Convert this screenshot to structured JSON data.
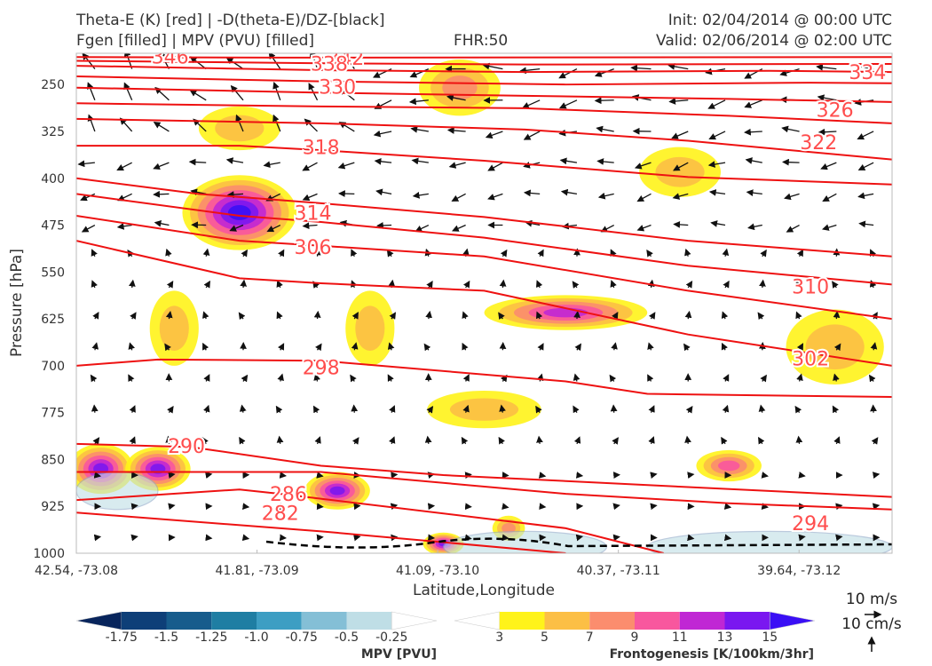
{
  "header": {
    "title_line1": "Theta-E (K) [red] | -D(theta-E)/DZ-[black]",
    "title_line2": "Fgen [filled] | MPV (PVU) [filled]",
    "fhr": "FHR:50",
    "init": "Init: 02/04/2014 @ 00:00 UTC",
    "valid": "Valid: 02/06/2014 @ 02:00 UTC"
  },
  "legend_vectors": {
    "horizontal": "10 m/s",
    "vertical": "10 cm/s"
  },
  "colorbars": {
    "mpv": {
      "label": "MPV [PVU]",
      "ticks": [
        "-1.75",
        "-1.5",
        "-1.25",
        "-1.0",
        "-0.75",
        "-0.5",
        "-0.25"
      ],
      "colors": [
        "#08255c",
        "#0e3f78",
        "#175c8c",
        "#1f7ea3",
        "#3d9ec3",
        "#84bfd6",
        "#bfdee6",
        "#ffffff"
      ]
    },
    "fgen": {
      "label": "Frontogenesis [K/100km/3hr]",
      "ticks": [
        "3",
        "5",
        "7",
        "9",
        "11",
        "13",
        "15"
      ],
      "colors": [
        "#ffffff",
        "#fff31a",
        "#fcbf45",
        "#fb8d6e",
        "#f8579e",
        "#c027d4",
        "#7a17f0",
        "#3a0ff5"
      ]
    }
  },
  "chart_data": {
    "type": "heatmap",
    "xlabel": "Latitude,Longitude",
    "ylabel": "Pressure [hPa]",
    "x_ticks": [
      "42.54, -73.08",
      "41.81, -73.09",
      "41.09, -73.10",
      "40.37, -73.11",
      "39.64, -73.12"
    ],
    "y_ticks": [
      250,
      325,
      400,
      475,
      550,
      625,
      700,
      775,
      850,
      925,
      1000
    ],
    "ylim": [
      1000,
      200
    ],
    "y_inverted": true,
    "theta_e_contours": [
      {
        "level": 282,
        "points": [
          [
            0,
            935
          ],
          [
            0.3,
            965
          ],
          [
            0.6,
            1000
          ]
        ]
      },
      {
        "level": 286,
        "points": [
          [
            0,
            915
          ],
          [
            0.2,
            898
          ],
          [
            0.25,
            905
          ],
          [
            0.6,
            960
          ],
          [
            0.72,
            1000
          ]
        ]
      },
      {
        "level": 290,
        "points": [
          [
            0,
            825
          ],
          [
            0.14,
            830
          ],
          [
            0.3,
            860
          ],
          [
            0.45,
            875
          ],
          [
            1,
            910
          ]
        ]
      },
      {
        "level": 294,
        "points": [
          [
            0,
            870
          ],
          [
            0.3,
            870
          ],
          [
            0.6,
            905
          ],
          [
            0.8,
            920
          ],
          [
            1,
            930
          ]
        ]
      },
      {
        "level": 298,
        "points": [
          [
            0,
            700
          ],
          [
            0.1,
            690
          ],
          [
            0.3,
            692
          ],
          [
            0.6,
            725
          ],
          [
            0.7,
            745
          ],
          [
            1,
            750
          ]
        ]
      },
      {
        "level": 302,
        "points": [
          [
            0,
            500
          ],
          [
            0.2,
            560
          ],
          [
            0.3,
            568
          ],
          [
            0.5,
            580
          ],
          [
            0.75,
            650
          ],
          [
            1,
            700
          ]
        ]
      },
      {
        "level": 306,
        "points": [
          [
            0,
            460
          ],
          [
            0.2,
            500
          ],
          [
            0.3,
            508
          ],
          [
            0.5,
            525
          ],
          [
            0.75,
            580
          ],
          [
            1,
            625
          ]
        ]
      },
      {
        "level": 310,
        "points": [
          [
            0,
            425
          ],
          [
            0.2,
            460
          ],
          [
            0.3,
            470
          ],
          [
            0.5,
            495
          ],
          [
            0.75,
            540
          ],
          [
            1,
            570
          ]
        ]
      },
      {
        "level": 314,
        "points": [
          [
            0,
            400
          ],
          [
            0.15,
            425
          ],
          [
            0.3,
            440
          ],
          [
            0.5,
            462
          ],
          [
            0.75,
            500
          ],
          [
            1,
            525
          ]
        ]
      },
      {
        "level": 318,
        "points": [
          [
            0,
            348
          ],
          [
            0.2,
            348
          ],
          [
            0.3,
            355
          ],
          [
            0.5,
            372
          ],
          [
            0.75,
            398
          ],
          [
            1,
            410
          ]
        ]
      },
      {
        "level": 322,
        "points": [
          [
            0,
            305
          ],
          [
            0.3,
            312
          ],
          [
            0.55,
            322
          ],
          [
            0.75,
            340
          ],
          [
            1,
            370
          ]
        ]
      },
      {
        "level": 326,
        "points": [
          [
            0,
            280
          ],
          [
            0.3,
            285
          ],
          [
            0.55,
            288
          ],
          [
            0.8,
            300
          ],
          [
            1,
            312
          ]
        ]
      },
      {
        "level": 330,
        "points": [
          [
            0,
            255
          ],
          [
            0.3,
            263
          ],
          [
            0.55,
            268
          ],
          [
            0.8,
            273
          ],
          [
            1,
            278
          ]
        ]
      },
      {
        "level": 334,
        "points": [
          [
            0,
            237
          ],
          [
            0.3,
            245
          ],
          [
            0.6,
            250
          ],
          [
            0.9,
            247
          ],
          [
            1,
            248
          ]
        ]
      },
      {
        "level": 338,
        "points": [
          [
            0,
            220
          ],
          [
            0.3,
            227
          ],
          [
            0.55,
            230
          ],
          [
            0.85,
            228
          ],
          [
            1,
            230
          ]
        ]
      },
      {
        "level": 342,
        "points": [
          [
            0,
            212
          ],
          [
            0.3,
            216
          ],
          [
            0.55,
            218
          ],
          [
            1,
            217
          ]
        ]
      },
      {
        "level": 346,
        "points": [
          [
            0,
            206
          ],
          [
            0.25,
            207
          ],
          [
            1,
            206
          ]
        ]
      }
    ],
    "theta_e_labels": [
      {
        "text": "346",
        "x": 0.115,
        "y": 205
      },
      {
        "text": "342",
        "x": 0.33,
        "y": 207
      },
      {
        "text": "338",
        "x": 0.31,
        "y": 216
      },
      {
        "text": "334",
        "x": 0.97,
        "y": 230
      },
      {
        "text": "330",
        "x": 0.32,
        "y": 253
      },
      {
        "text": "326",
        "x": 0.93,
        "y": 290
      },
      {
        "text": "322",
        "x": 0.91,
        "y": 342
      },
      {
        "text": "318",
        "x": 0.3,
        "y": 350
      },
      {
        "text": "314",
        "x": 0.29,
        "y": 455
      },
      {
        "text": "310",
        "x": 0.9,
        "y": 573
      },
      {
        "text": "306",
        "x": 0.29,
        "y": 510
      },
      {
        "text": "302",
        "x": 0.9,
        "y": 688
      },
      {
        "text": "298",
        "x": 0.3,
        "y": 702
      },
      {
        "text": "294",
        "x": 0.9,
        "y": 952
      },
      {
        "text": "290",
        "x": 0.135,
        "y": 828
      },
      {
        "text": "286",
        "x": 0.26,
        "y": 905
      },
      {
        "text": "282",
        "x": 0.25,
        "y": 935
      }
    ],
    "fgen_blobs": [
      {
        "value": 15,
        "x": 0.2,
        "y": 455,
        "rx": 0.07,
        "ry": 60
      },
      {
        "value": 11,
        "x": 0.6,
        "y": 615,
        "rx": 0.1,
        "ry": 28
      },
      {
        "value": 7,
        "x": 0.47,
        "y": 255,
        "rx": 0.05,
        "ry": 45
      },
      {
        "value": 5,
        "x": 0.74,
        "y": 390,
        "rx": 0.05,
        "ry": 40
      },
      {
        "value": 5,
        "x": 0.2,
        "y": 320,
        "rx": 0.05,
        "ry": 35
      },
      {
        "value": 13,
        "x": 0.03,
        "y": 865,
        "rx": 0.04,
        "ry": 40
      },
      {
        "value": 13,
        "x": 0.1,
        "y": 865,
        "rx": 0.04,
        "ry": 35
      },
      {
        "value": 13,
        "x": 0.32,
        "y": 900,
        "rx": 0.04,
        "ry": 30
      },
      {
        "value": 13,
        "x": 0.45,
        "y": 985,
        "rx": 0.025,
        "ry": 18
      },
      {
        "value": 9,
        "x": 0.8,
        "y": 860,
        "rx": 0.04,
        "ry": 25
      },
      {
        "value": 7,
        "x": 0.53,
        "y": 960,
        "rx": 0.02,
        "ry": 20
      },
      {
        "value": 5,
        "x": 0.12,
        "y": 640,
        "rx": 0.03,
        "ry": 60
      },
      {
        "value": 5,
        "x": 0.36,
        "y": 640,
        "rx": 0.03,
        "ry": 60
      },
      {
        "value": 5,
        "x": 0.5,
        "y": 770,
        "rx": 0.07,
        "ry": 30
      },
      {
        "value": 5,
        "x": 0.93,
        "y": 670,
        "rx": 0.06,
        "ry": 60
      }
    ],
    "mpv_regions": [
      {
        "value": -0.25,
        "x": 0.55,
        "y": 990,
        "rx": 0.1,
        "ry": 25
      },
      {
        "value": -0.25,
        "x": 0.85,
        "y": 990,
        "rx": 0.15,
        "ry": 25
      },
      {
        "value": -0.25,
        "x": 0.05,
        "y": 900,
        "rx": 0.05,
        "ry": 30
      }
    ],
    "vectors": {
      "description_levels": [
        225,
        275,
        325,
        375,
        425,
        475,
        525,
        575,
        625,
        675,
        725,
        775,
        825,
        875,
        925,
        975
      ],
      "columns": 22
    },
    "grid": false
  }
}
